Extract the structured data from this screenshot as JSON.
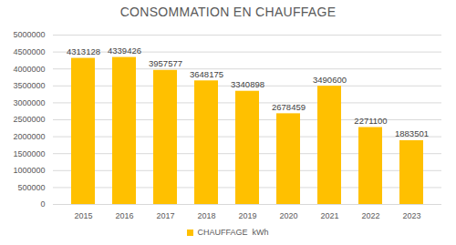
{
  "chart_data": {
    "type": "bar",
    "title": "CONSOMMATION EN CHAUFFAGE",
    "categories": [
      "2015",
      "2016",
      "2017",
      "2018",
      "2019",
      "2020",
      "2021",
      "2022",
      "2023"
    ],
    "series": [
      {
        "name": "CHAUFFAGE  kWh",
        "color": "#FFC000",
        "values": [
          4313128,
          4339426,
          3957577,
          3648175,
          3340898,
          2678459,
          3490600,
          2271100,
          1883501
        ]
      }
    ],
    "ylim": [
      0,
      5000000
    ],
    "yticks": [
      0,
      500000,
      1000000,
      1500000,
      2000000,
      2500000,
      3000000,
      3500000,
      4000000,
      4500000,
      5000000
    ],
    "grid": true,
    "data_labels": true,
    "legend": "bottom"
  }
}
